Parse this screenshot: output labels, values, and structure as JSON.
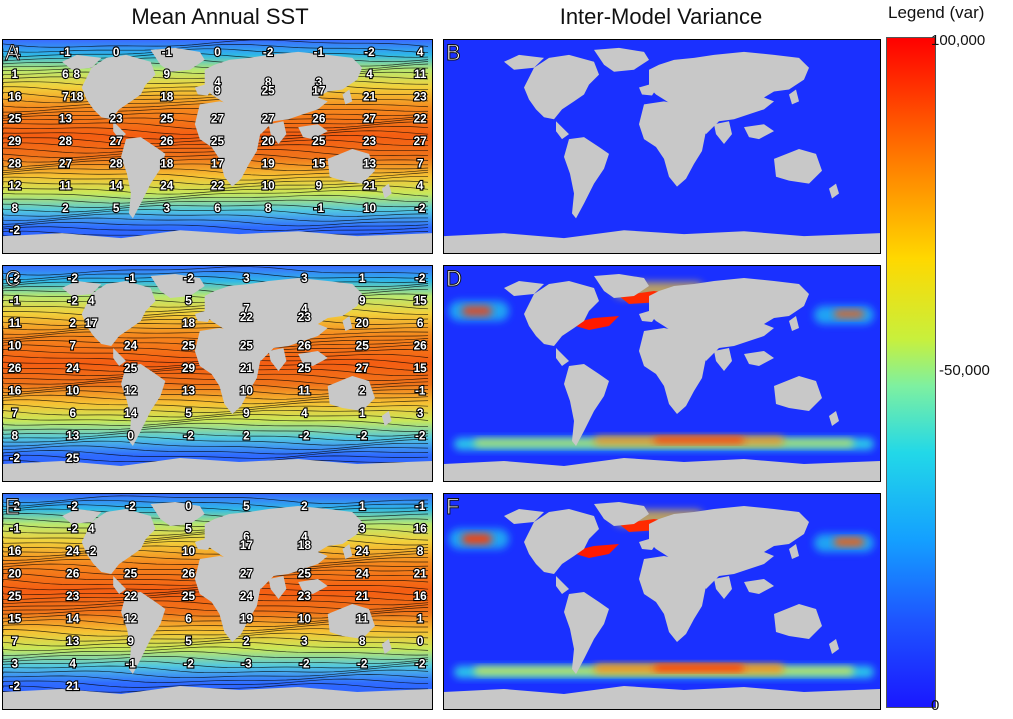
{
  "titles": {
    "left": "Mean Annual SST",
    "right": "Inter-Model Variance"
  },
  "legend": {
    "title": "Legend (var)",
    "tick_max": "100,000",
    "tick_mid": "-50,000",
    "tick_min": "0"
  },
  "colors": {
    "land": "#c8c8c8",
    "variance_low": "#1a30ff",
    "variance_high": "#ff0000",
    "sst_warm": "#ff5a10",
    "sst_cold": "#2f6bff"
  },
  "panels": {
    "A": {
      "label": "A",
      "labels": [
        "-1",
        "-1",
        "0",
        "-1",
        "0",
        "-2",
        "-1",
        "-2",
        "4",
        "1",
        "6",
        "8",
        "9",
        "4",
        "8",
        "3",
        "4",
        "11",
        "16",
        "7",
        "18",
        "18",
        "9",
        "25",
        "17",
        "21",
        "23",
        "25",
        "13",
        "23",
        "25",
        "27",
        "27",
        "26",
        "27",
        "22",
        "29",
        "28",
        "27",
        "26",
        "25",
        "20",
        "25",
        "23",
        "27",
        "28",
        "27",
        "28",
        "18",
        "17",
        "19",
        "15",
        "13",
        "7",
        "12",
        "11",
        "14",
        "24",
        "22",
        "10",
        "9",
        "21",
        "4",
        "8",
        "2",
        "5",
        "3",
        "6",
        "8",
        "-1",
        "10",
        "-2",
        "-2"
      ]
    },
    "B": {
      "label": "B"
    },
    "C": {
      "label": "C",
      "labels": [
        "-2",
        "-2",
        "-1",
        "-2",
        "3",
        "3",
        "1",
        "-2",
        "-1",
        "-2",
        "4",
        "5",
        "7",
        "4",
        "9",
        "15",
        "11",
        "2",
        "17",
        "18",
        "22",
        "23",
        "20",
        "6",
        "10",
        "7",
        "24",
        "25",
        "25",
        "26",
        "25",
        "26",
        "26",
        "24",
        "25",
        "29",
        "21",
        "25",
        "27",
        "15",
        "16",
        "10",
        "12",
        "13",
        "10",
        "11",
        "2",
        "-1",
        "7",
        "6",
        "14",
        "5",
        "9",
        "4",
        "1",
        "3",
        "8",
        "13",
        "0",
        "-2",
        "2",
        "-2",
        "-2",
        "-2",
        "-2",
        "25"
      ]
    },
    "D": {
      "label": "D"
    },
    "E": {
      "label": "E",
      "labels": [
        "-2",
        "-2",
        "-2",
        "0",
        "5",
        "2",
        "1",
        "-1",
        "-1",
        "-2",
        "4",
        "5",
        "6",
        "4",
        "3",
        "16",
        "16",
        "24",
        "-2",
        "10",
        "17",
        "18",
        "24",
        "8",
        "20",
        "26",
        "25",
        "26",
        "27",
        "25",
        "24",
        "21",
        "25",
        "23",
        "22",
        "25",
        "24",
        "23",
        "21",
        "16",
        "15",
        "14",
        "12",
        "6",
        "19",
        "10",
        "11",
        "1",
        "7",
        "13",
        "9",
        "5",
        "2",
        "3",
        "8",
        "0",
        "3",
        "4",
        "-1",
        "-2",
        "-3",
        "-2",
        "-2",
        "-2",
        "-2",
        "21"
      ]
    },
    "F": {
      "label": "F"
    }
  }
}
